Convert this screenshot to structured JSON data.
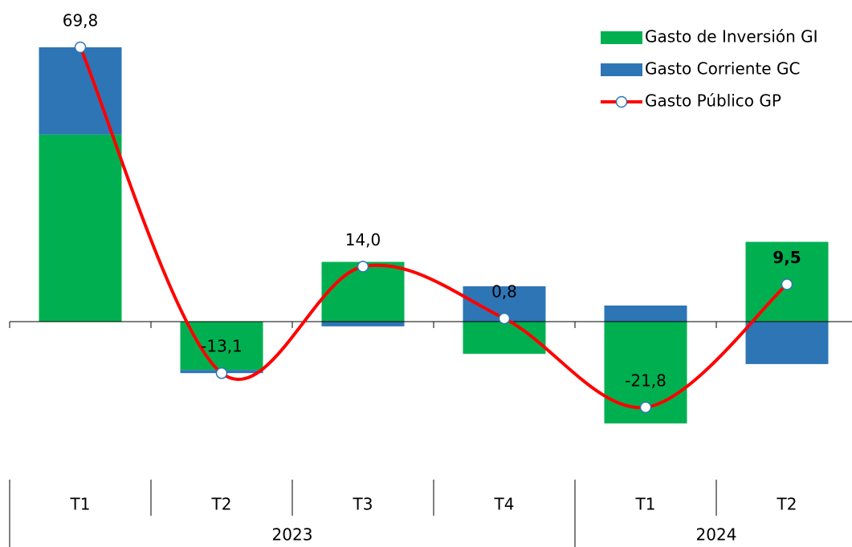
{
  "chart_data": {
    "type": "stacked-bar-line",
    "categories": [
      "T1",
      "T2",
      "T3",
      "T4",
      "T1",
      "T2"
    ],
    "groups": [
      {
        "label": "2023",
        "count": 4
      },
      {
        "label": "2024",
        "count": 2
      }
    ],
    "series": [
      {
        "name": "Gasto de Inversión GI",
        "color": "#00b050",
        "kind": "bar",
        "values": [
          47.6,
          -12.3,
          15.2,
          -8.2,
          -25.9,
          20.3
        ]
      },
      {
        "name": "Gasto Corriente GC",
        "color": "#2e75b6",
        "kind": "bar",
        "values": [
          22.2,
          -0.8,
          -1.2,
          9.0,
          4.1,
          -10.8
        ]
      },
      {
        "name": "Gasto Público GP",
        "color": "#ff0000",
        "kind": "line",
        "values": [
          69.8,
          -13.1,
          14.0,
          0.8,
          -21.8,
          9.5
        ],
        "value_labels": [
          "69,8",
          "-13,1",
          "14,0",
          "0,8",
          "-21,8",
          "9,5"
        ]
      }
    ],
    "ylim": [
      -35,
      80
    ]
  }
}
